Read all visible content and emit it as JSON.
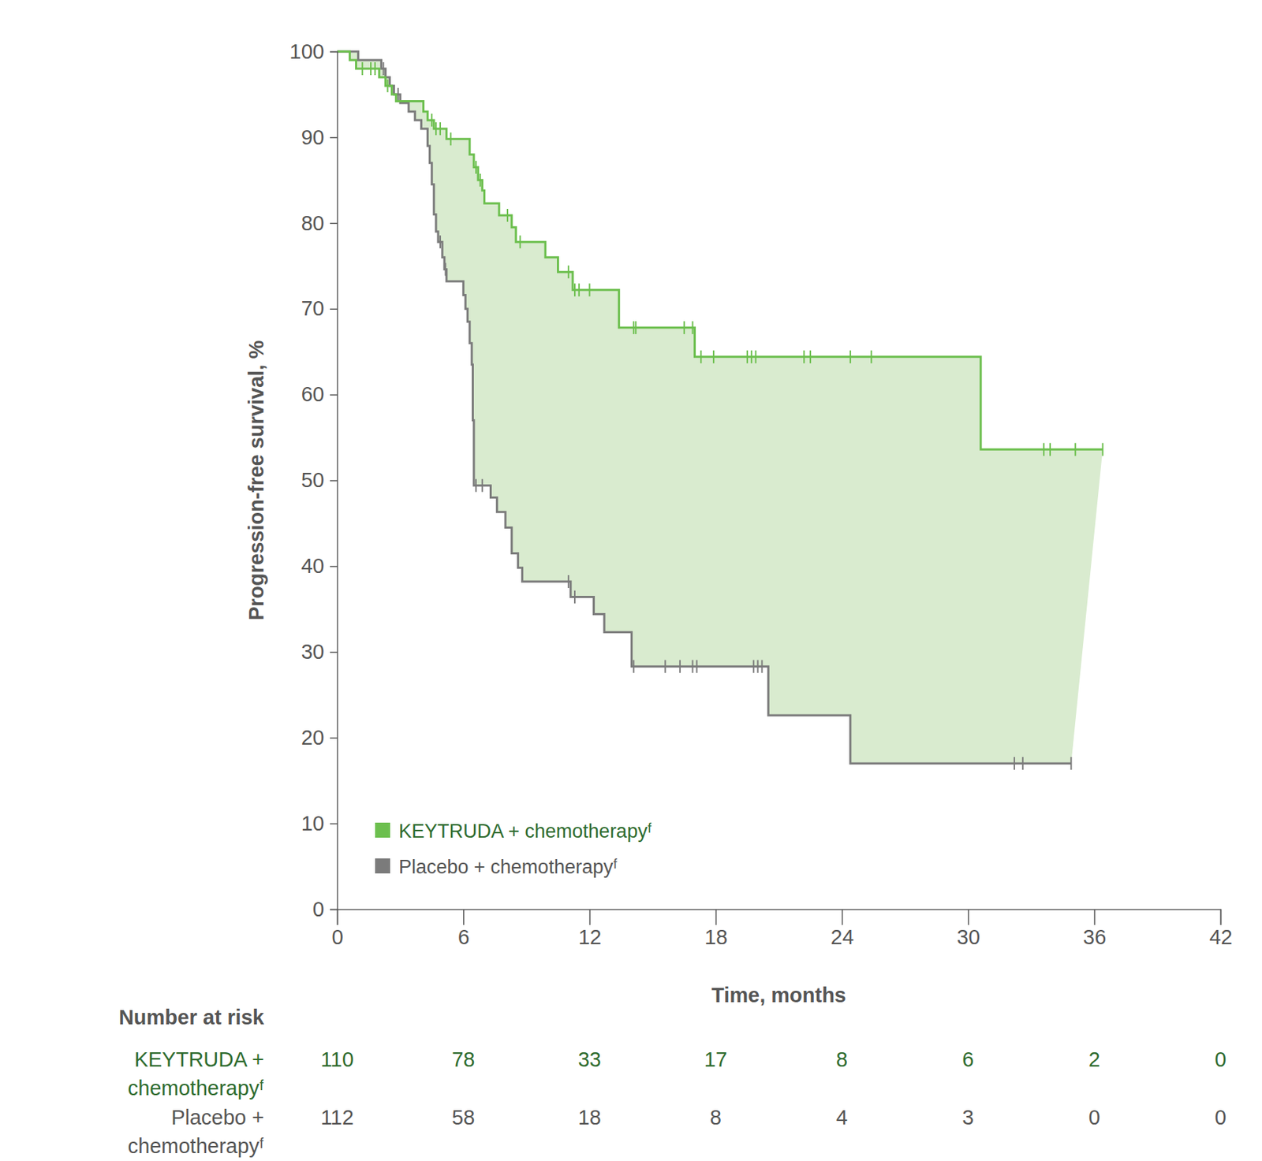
{
  "chart_data": {
    "type": "kaplan-meier",
    "x_label": "Time, months",
    "y_label": "Progression-free survival, %",
    "xlim": [
      0,
      42
    ],
    "xticks": [
      0,
      6,
      12,
      18,
      24,
      30,
      36,
      42
    ],
    "ylim": [
      0,
      100
    ],
    "yticks": [
      0,
      10,
      20,
      30,
      40,
      50,
      60,
      70,
      80,
      90,
      100
    ],
    "legend": "lower left",
    "series": [
      {
        "name": "KEYTRUDA + chemotherapyᶠ",
        "color": "#6cbf4e",
        "x": [
          0,
          0.6,
          0.9,
          2.0,
          2.3,
          2.6,
          2.8,
          4.1,
          4.3,
          4.6,
          5.2,
          6.3,
          6.5,
          6.7,
          6.9,
          7.0,
          7.7,
          8.3,
          8.5,
          9.9,
          10.5,
          11.2,
          13.4,
          17.0,
          30.6,
          36.4
        ],
        "values": [
          100,
          99,
          98,
          97,
          96,
          95,
          94.2,
          93,
          92,
          91,
          89.8,
          88,
          86.5,
          85,
          83.8,
          82.3,
          80.9,
          79.5,
          77.8,
          76,
          74.3,
          72.2,
          67.8,
          64.4,
          53.6,
          53.6
        ],
        "censor_x": [
          1.2,
          1.6,
          1.8,
          2.4,
          4.5,
          4.7,
          4.9,
          5.4,
          6.6,
          6.8,
          8.1,
          8.7,
          11.0,
          11.3,
          11.5,
          12.0,
          14.1,
          14.2,
          16.5,
          16.9,
          17.3,
          17.9,
          19.5,
          19.7,
          19.9,
          22.2,
          22.5,
          24.4,
          25.4,
          33.6,
          33.9,
          35.1,
          36.4
        ],
        "censor_values": [
          98,
          98,
          98,
          96,
          92,
          91,
          91,
          89.8,
          86.5,
          85,
          80.9,
          77.8,
          74.3,
          72.2,
          72.2,
          72.2,
          67.8,
          67.8,
          67.8,
          67.8,
          64.4,
          64.4,
          64.4,
          64.4,
          64.4,
          64.4,
          64.4,
          64.4,
          64.4,
          53.6,
          53.6,
          53.6,
          53.6
        ]
      },
      {
        "name": "Placebo + chemotherapyᶠ",
        "color": "#7b7b7b",
        "x": [
          0,
          1.0,
          2.1,
          2.3,
          2.5,
          2.7,
          3.0,
          3.4,
          3.7,
          4.0,
          4.3,
          4.4,
          4.5,
          4.6,
          4.7,
          4.8,
          5.0,
          5.1,
          5.2,
          6.0,
          6.1,
          6.2,
          6.3,
          6.4,
          6.45,
          6.5,
          7.3,
          7.6,
          8.0,
          8.3,
          8.6,
          8.8,
          11.1,
          12.2,
          12.7,
          14.0,
          20.5,
          24.4,
          34.9
        ],
        "values": [
          100,
          99,
          98,
          97,
          96,
          95,
          94,
          93,
          92,
          91,
          89,
          87,
          84.5,
          81,
          79,
          77.8,
          76,
          74.6,
          73.2,
          71.6,
          70,
          68.5,
          66,
          63.5,
          57,
          49.4,
          48,
          46.3,
          44.5,
          41.5,
          39.8,
          38.2,
          36.4,
          34.4,
          32.3,
          28.3,
          22.6,
          17,
          17
        ],
        "censor_x": [
          2.2,
          2.9,
          4.9,
          5.15,
          6.6,
          6.9,
          11.0,
          11.3,
          14.1,
          15.6,
          16.3,
          16.9,
          17.1,
          19.8,
          20.0,
          20.2,
          32.2,
          32.6,
          34.9
        ],
        "censor_values": [
          98,
          95,
          77.8,
          74.6,
          49.4,
          49.4,
          38.2,
          36.4,
          28.3,
          28.3,
          28.3,
          28.3,
          28.3,
          28.3,
          28.3,
          28.3,
          17,
          17,
          17
        ]
      }
    ],
    "risk_table": {
      "title": "Number at risk",
      "rows": [
        {
          "label_lines": [
            "KEYTRUDA +",
            "chemotherapyᶠ"
          ],
          "counts": [
            110,
            78,
            33,
            17,
            8,
            6,
            2,
            0
          ]
        },
        {
          "label_lines": [
            "Placebo +",
            "chemotherapyᶠ"
          ],
          "counts": [
            112,
            58,
            18,
            8,
            4,
            3,
            0,
            0
          ]
        }
      ]
    }
  }
}
